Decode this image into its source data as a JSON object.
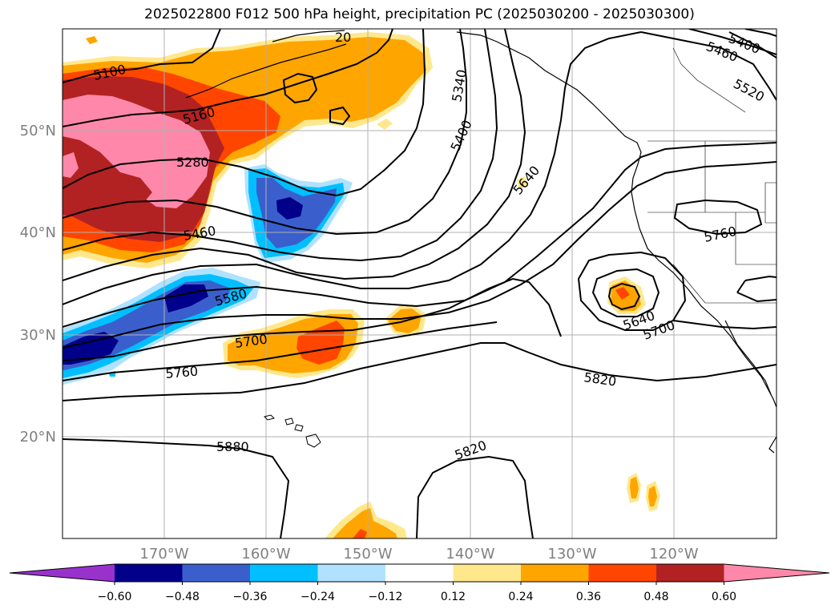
{
  "title": "2025022800 F012 500 hPa height, precipitation PC (2025030200 - 2025030300)",
  "lat_labels": [
    "50°N",
    "40°N",
    "30°N",
    "20°N"
  ],
  "lon_labels": [
    "170°W",
    "160°W",
    "150°W",
    "140°W",
    "130°W",
    "120°W"
  ],
  "colorbar": {
    "ticks": [
      "−0.60",
      "−0.48",
      "−0.36",
      "−0.24",
      "−0.12",
      "0.12",
      "0.24",
      "0.36",
      "0.48",
      "0.60"
    ],
    "colors": [
      "#9932cc",
      "#00008b",
      "#3a5fcd",
      "#00bfff",
      "#b0e2ff",
      "#ffffff",
      "#ffe88c",
      "#ffa500",
      "#ff4500",
      "#b22222",
      "#ff88aa"
    ]
  },
  "contour_labels": [
    {
      "text": "5100",
      "name": "contour-label-5100"
    },
    {
      "text": "5160",
      "name": "contour-label-5160"
    },
    {
      "text": "5280",
      "name": "contour-label-5280"
    },
    {
      "text": "5460",
      "name": "contour-label-5460-west"
    },
    {
      "text": "5580",
      "name": "contour-label-5580"
    },
    {
      "text": "5700",
      "name": "contour-label-5700-west"
    },
    {
      "text": "5760",
      "name": "contour-label-5760-west"
    },
    {
      "text": "5880",
      "name": "contour-label-5880"
    },
    {
      "text": "5820",
      "name": "contour-label-5820-south"
    },
    {
      "text": "5340",
      "name": "contour-label-5340"
    },
    {
      "text": "5400",
      "name": "contour-label-5400"
    },
    {
      "text": "5640",
      "name": "contour-label-5640-north"
    },
    {
      "text": "5820",
      "name": "contour-label-5820-east"
    },
    {
      "text": "5640",
      "name": "contour-label-5640-low"
    },
    {
      "text": "5700",
      "name": "contour-label-5700-low"
    },
    {
      "text": "5760",
      "name": "contour-label-5760-east"
    },
    {
      "text": "5520",
      "name": "contour-label-5520"
    },
    {
      "text": "5460",
      "name": "contour-label-5460-ne"
    },
    {
      "text": "5400",
      "name": "contour-label-5400-ne"
    },
    {
      "text": "20",
      "name": "contour-label-20-partial"
    }
  ],
  "colors": {
    "contour": "#000000",
    "grid": "#b0b0b0",
    "axis_label": "#808080"
  }
}
